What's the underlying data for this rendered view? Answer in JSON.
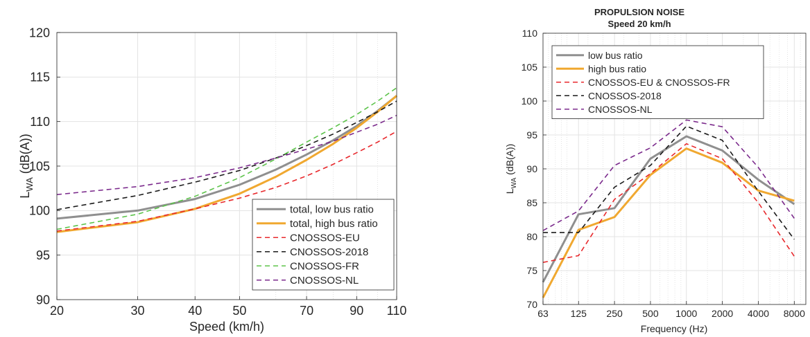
{
  "chart_data": [
    {
      "type": "line",
      "xlabel": "Speed (km/h)",
      "ylabel_main": "L",
      "ylabel_sub": "WA",
      "ylabel_rest": " (dB(A))",
      "x_scale": "log",
      "xlim": [
        20,
        110
      ],
      "ylim": [
        90,
        120
      ],
      "xticks": [
        20,
        30,
        40,
        50,
        70,
        90,
        110
      ],
      "xticklabels": [
        "20",
        "30",
        "40",
        "50",
        "70",
        "90",
        "110"
      ],
      "yticks": [
        90,
        95,
        100,
        105,
        110,
        115,
        120
      ],
      "yticklabels": [
        "90",
        "95",
        "100",
        "105",
        "110",
        "115",
        "120"
      ],
      "grid": true,
      "legend_position": "bottom-right",
      "x": [
        20,
        30,
        40,
        50,
        60,
        70,
        80,
        90,
        100,
        110
      ],
      "series": [
        {
          "name": "total, low bus ratio",
          "color": "#8f8f8f",
          "style": "solid",
          "width": 3,
          "values": [
            99.1,
            100.0,
            101.3,
            102.9,
            104.6,
            106.3,
            107.9,
            109.5,
            111.2,
            112.9
          ]
        },
        {
          "name": "total, high bus ratio",
          "color": "#f0a830",
          "style": "solid",
          "width": 3,
          "values": [
            97.6,
            98.7,
            100.2,
            101.9,
            103.8,
            105.7,
            107.5,
            109.3,
            111.1,
            112.9
          ]
        },
        {
          "name": "CNOSSOS-EU",
          "color": "#e8282c",
          "style": "dashed",
          "width": 1.6,
          "values": [
            97.7,
            98.8,
            100.2,
            101.4,
            102.6,
            103.9,
            105.2,
            106.5,
            107.7,
            108.9
          ]
        },
        {
          "name": "CNOSSOS-2018",
          "color": "#1a1a1a",
          "style": "dashed",
          "width": 1.6,
          "values": [
            100.1,
            101.7,
            103.2,
            104.5,
            105.9,
            107.3,
            108.6,
            109.9,
            111.1,
            112.3
          ]
        },
        {
          "name": "CNOSSOS-FR",
          "color": "#5cc34a",
          "style": "dashed",
          "width": 1.6,
          "values": [
            97.9,
            99.6,
            101.6,
            103.7,
            105.8,
            107.7,
            109.3,
            110.8,
            112.3,
            113.8
          ]
        },
        {
          "name": "CNOSSOS-NL",
          "color": "#7b2a8c",
          "style": "dashed",
          "width": 1.6,
          "values": [
            101.8,
            102.7,
            103.7,
            104.8,
            105.9,
            106.9,
            107.8,
            108.8,
            109.7,
            110.7
          ]
        }
      ]
    },
    {
      "type": "line",
      "title": "PROPULSION NOISE",
      "subtitle": "Speed 20 km/h",
      "xlabel": "Frequency (Hz)",
      "ylabel_main": "L",
      "ylabel_sub": "WA",
      "ylabel_rest": " (dB(A))",
      "x_scale": "log",
      "xlim": [
        63,
        10000
      ],
      "ylim": [
        70,
        110
      ],
      "xticks": [
        63,
        125,
        250,
        500,
        1000,
        2000,
        4000,
        8000
      ],
      "xticklabels": [
        "63",
        "125",
        "250",
        "500",
        "1000",
        "2000",
        "4000",
        "8000"
      ],
      "yticks": [
        70,
        75,
        80,
        85,
        90,
        95,
        100,
        105,
        110
      ],
      "yticklabels": [
        "70",
        "75",
        "80",
        "85",
        "90",
        "95",
        "100",
        "105",
        "110"
      ],
      "grid": true,
      "legend_position": "top-left",
      "x": [
        63,
        125,
        250,
        500,
        1000,
        2000,
        4000,
        8000
      ],
      "series": [
        {
          "name": "low bus ratio",
          "color": "#8f8f8f",
          "style": "solid",
          "width": 3,
          "values": [
            73.3,
            83.3,
            84.2,
            91.5,
            94.8,
            92.7,
            88.4,
            84.8
          ]
        },
        {
          "name": "high bus ratio",
          "color": "#f0a830",
          "style": "solid",
          "width": 3,
          "values": [
            71.0,
            81.0,
            82.9,
            89.1,
            93.0,
            90.9,
            86.8,
            85.3
          ]
        },
        {
          "name": "CNOSSOS-EU & CNOSSOS-FR",
          "color": "#e8282c",
          "style": "dashed",
          "width": 1.6,
          "values": [
            76.2,
            77.2,
            85.5,
            89.3,
            93.7,
            91.5,
            85.0,
            77.1
          ]
        },
        {
          "name": "CNOSSOS-2018",
          "color": "#1a1a1a",
          "style": "dashed",
          "width": 1.6,
          "values": [
            80.6,
            80.6,
            87.3,
            90.5,
            96.3,
            94.2,
            86.7,
            79.6
          ]
        },
        {
          "name": "CNOSSOS-NL",
          "color": "#7b2a8c",
          "style": "dashed",
          "width": 1.6,
          "values": [
            80.9,
            83.8,
            90.5,
            93.1,
            97.2,
            96.2,
            90.2,
            82.7
          ]
        }
      ]
    }
  ]
}
